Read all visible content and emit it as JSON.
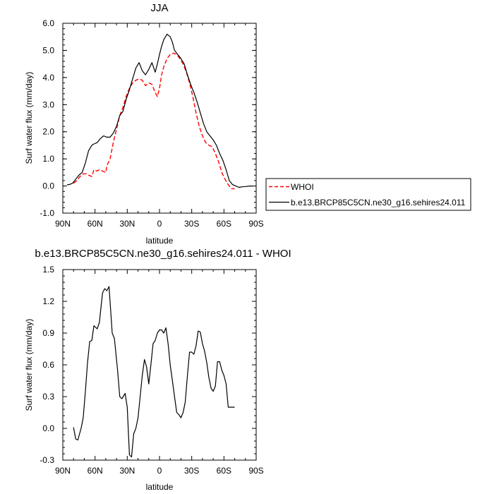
{
  "chart_data": [
    {
      "type": "line",
      "title": "JJA",
      "xlabel": "latitude",
      "ylabel": "Surf water flux (mm/day)",
      "xlim": [
        90,
        -90
      ],
      "ylim": [
        -1.0,
        6.0
      ],
      "xticks": [
        90,
        60,
        30,
        0,
        -30,
        -60,
        -90
      ],
      "xtick_labels": [
        "90N",
        "60N",
        "30N",
        "0",
        "30S",
        "60S",
        "90S"
      ],
      "yticks": [
        -1.0,
        0.0,
        1.0,
        2.0,
        3.0,
        4.0,
        5.0,
        6.0
      ],
      "ytick_labels": [
        "-1.0",
        "0.0",
        "1.0",
        "2.0",
        "3.0",
        "4.0",
        "5.0",
        "6.0"
      ],
      "legend_placement": "right",
      "series": [
        {
          "name": "WHOI",
          "color": "#ff0000",
          "dash": "dashed",
          "x": [
            80,
            77,
            74,
            71,
            68,
            66,
            63,
            61,
            58,
            56,
            53,
            50,
            49,
            46,
            43,
            40,
            37,
            34,
            31,
            28,
            25,
            22,
            19,
            16,
            13,
            10,
            7,
            4,
            2,
            0,
            -2,
            -4,
            -7,
            -10,
            -13,
            -16,
            -19,
            -22,
            -25,
            -28,
            -31,
            -34,
            -37,
            -40,
            -43,
            -46,
            -49,
            -52,
            -55,
            -58,
            -61,
            -64,
            -67,
            -70
          ],
          "y": [
            0.1,
            0.2,
            0.35,
            0.45,
            0.45,
            0.4,
            0.35,
            0.6,
            0.55,
            0.6,
            0.55,
            0.5,
            0.75,
            1.0,
            1.6,
            2.1,
            2.6,
            2.9,
            3.3,
            3.6,
            3.8,
            3.9,
            3.95,
            3.9,
            3.7,
            3.8,
            3.75,
            3.45,
            3.3,
            3.6,
            4.1,
            4.4,
            4.7,
            4.85,
            4.9,
            4.85,
            4.7,
            4.5,
            4.2,
            3.8,
            3.3,
            2.7,
            2.2,
            1.85,
            1.6,
            1.5,
            1.45,
            1.2,
            0.9,
            0.5,
            0.25,
            0.05,
            -0.1,
            -0.1
          ]
        },
        {
          "name": "b.e13.BRCP85C5CN.ne30_g16.sehires24.011",
          "color": "#000000",
          "dash": "solid",
          "x": [
            86,
            84,
            81,
            78,
            75,
            72,
            69,
            66,
            63,
            61,
            58,
            55,
            52,
            49,
            46,
            43,
            40,
            37,
            34,
            31,
            28,
            25,
            22,
            19,
            16,
            13,
            10,
            7,
            4,
            2,
            0,
            -2,
            -4,
            -7,
            -10,
            -12,
            -14,
            -17,
            -20,
            -23,
            -26,
            -29,
            -32,
            -35,
            -38,
            -41,
            -44,
            -47,
            -50,
            -53,
            -56,
            -59,
            -62,
            -65,
            -68,
            -71,
            -74,
            -77,
            -80,
            -84,
            -87
          ],
          "y": [
            0.05,
            0.05,
            0.1,
            0.25,
            0.4,
            0.5,
            0.85,
            1.3,
            1.5,
            1.55,
            1.6,
            1.75,
            1.85,
            1.8,
            1.8,
            1.95,
            2.2,
            2.6,
            2.75,
            3.2,
            3.55,
            3.95,
            4.35,
            4.55,
            4.25,
            4.1,
            4.3,
            4.55,
            4.2,
            4.5,
            4.85,
            5.15,
            5.4,
            5.6,
            5.5,
            5.3,
            5.0,
            4.85,
            4.7,
            4.5,
            4.1,
            3.75,
            3.45,
            3.1,
            2.7,
            2.3,
            2.0,
            1.85,
            1.7,
            1.5,
            1.2,
            0.95,
            0.6,
            0.2,
            0.05,
            0.0,
            -0.05,
            -0.03,
            -0.02,
            0.0,
            0.0
          ]
        }
      ]
    },
    {
      "type": "line",
      "title": "b.e13.BRCP85C5CN.ne30_g16.sehires24.011 - WHOI",
      "xlabel": "latitude",
      "ylabel": "Surf water flux (mm/day)",
      "xlim": [
        90,
        -90
      ],
      "ylim": [
        -0.3,
        1.5
      ],
      "xticks": [
        90,
        60,
        30,
        0,
        -30,
        -60,
        -90
      ],
      "xtick_labels": [
        "90N",
        "60N",
        "30N",
        "0",
        "30S",
        "60S",
        "90S"
      ],
      "yticks": [
        -0.3,
        0.0,
        0.3,
        0.6,
        0.9,
        1.2,
        1.5
      ],
      "ytick_labels": [
        "-0.3",
        "0.0",
        "0.3",
        "0.6",
        "0.9",
        "1.2",
        "1.5"
      ],
      "series": [
        {
          "color": "#000000",
          "dash": "solid",
          "x": [
            80,
            78,
            76,
            73,
            71,
            69,
            67,
            65,
            63,
            61,
            58,
            56,
            53,
            51,
            49,
            47,
            44,
            42,
            39,
            37,
            35,
            32,
            30,
            28,
            26,
            24,
            22,
            20,
            18,
            16,
            14,
            12,
            10,
            8,
            6,
            4,
            2,
            0,
            -2,
            -4,
            -6,
            -8,
            -10,
            -12,
            -14,
            -16,
            -18,
            -20,
            -22,
            -24,
            -26,
            -28,
            -30,
            -32,
            -34,
            -36,
            -38,
            -40,
            -42,
            -44,
            -46,
            -48,
            -50,
            -52,
            -54,
            -56,
            -58,
            -60,
            -62,
            -64,
            -66,
            -68,
            -70
          ],
          "y": [
            0.01,
            -0.1,
            -0.11,
            0.0,
            0.1,
            0.35,
            0.62,
            0.82,
            0.83,
            0.97,
            0.94,
            1.0,
            1.28,
            1.32,
            1.3,
            1.34,
            0.9,
            0.85,
            0.55,
            0.3,
            0.28,
            0.33,
            0.2,
            -0.25,
            -0.27,
            -0.05,
            0.0,
            0.1,
            0.3,
            0.5,
            0.65,
            0.58,
            0.42,
            0.6,
            0.8,
            0.83,
            0.9,
            0.93,
            0.93,
            0.9,
            0.95,
            0.8,
            0.6,
            0.45,
            0.3,
            0.15,
            0.13,
            0.1,
            0.15,
            0.25,
            0.5,
            0.72,
            0.72,
            0.7,
            0.78,
            0.92,
            0.91,
            0.8,
            0.73,
            0.62,
            0.48,
            0.38,
            0.35,
            0.4,
            0.63,
            0.63,
            0.55,
            0.5,
            0.42,
            0.2,
            0.2,
            0.2,
            0.2
          ]
        }
      ]
    }
  ]
}
